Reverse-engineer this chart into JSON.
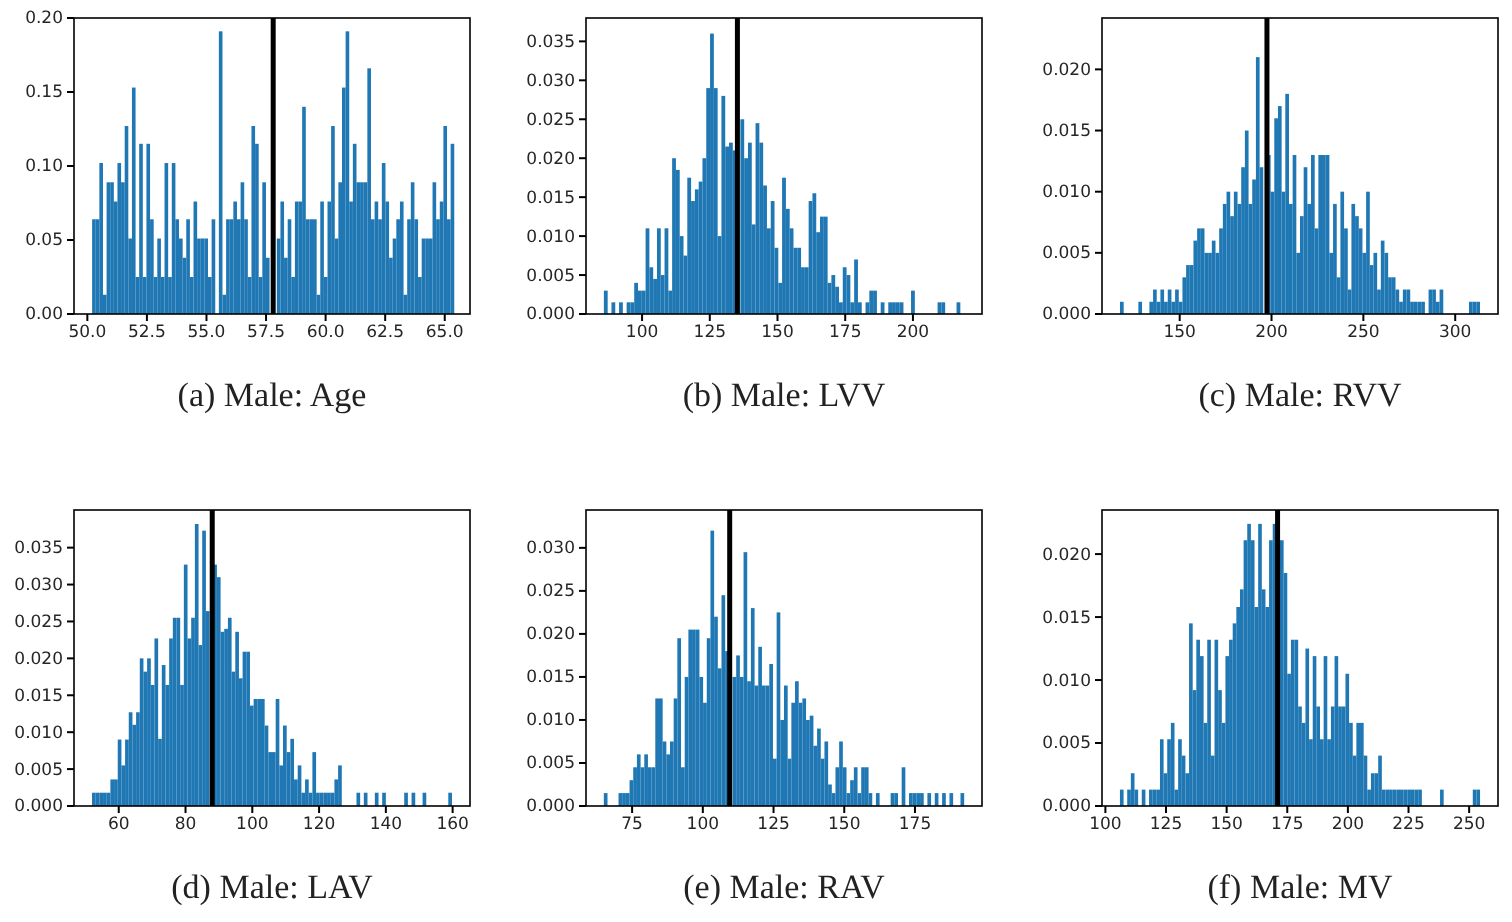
{
  "chart_data": [
    {
      "type": "histogram",
      "title": "(a) Male: Age",
      "color": "#1f77b4",
      "xlim": [
        49.44,
        66.06
      ],
      "ylim": [
        0,
        0.2
      ],
      "xticks": [
        {
          "value": 50,
          "label": "50.0"
        },
        {
          "value": 52.5,
          "label": "52.5"
        },
        {
          "value": 55,
          "label": "55.0"
        },
        {
          "value": 57.5,
          "label": "57.5"
        },
        {
          "value": 60,
          "label": "60.0"
        },
        {
          "value": 62.5,
          "label": "62.5"
        },
        {
          "value": 65,
          "label": "65.0"
        }
      ],
      "yticks": [
        {
          "value": 0,
          "label": "0.00"
        },
        {
          "value": 0.05,
          "label": "0.05"
        },
        {
          "value": 0.1,
          "label": "0.10"
        },
        {
          "value": 0.15,
          "label": "0.15"
        },
        {
          "value": 0.2,
          "label": "0.20"
        }
      ],
      "bins": [
        50.2,
        50.352,
        50.504,
        50.656,
        50.808,
        50.96,
        51.112,
        51.264,
        51.416,
        51.568,
        51.72,
        51.872,
        52.024,
        52.176,
        52.328,
        52.48,
        52.632,
        52.784,
        52.936,
        53.088,
        53.24,
        53.392,
        53.544,
        53.696,
        53.848,
        54,
        54.152,
        54.304,
        54.456,
        54.608,
        54.76,
        54.912,
        55.064,
        55.216,
        55.368,
        55.52,
        55.672,
        55.824,
        55.976,
        56.128,
        56.28,
        56.432,
        56.584,
        56.736,
        56.888,
        57.04,
        57.192,
        57.344,
        57.496,
        57.648,
        57.8,
        57.952,
        58.104,
        58.256,
        58.408,
        58.56,
        58.712,
        58.864,
        59.016,
        59.168,
        59.32,
        59.472,
        59.624,
        59.776,
        59.928,
        60.08,
        60.232,
        60.384,
        60.536,
        60.688,
        60.84,
        60.992,
        61.144,
        61.296,
        61.448,
        61.6,
        61.752,
        61.904,
        62.056,
        62.208,
        62.36,
        62.512,
        62.664,
        62.816,
        62.968,
        63.12,
        63.272,
        63.424,
        63.576,
        63.728,
        63.88,
        64.032,
        64.184,
        64.336,
        64.488,
        64.64,
        64.792,
        64.944,
        65.096,
        65.248,
        65.4
      ],
      "values": [
        0.064,
        0.064,
        0.102,
        0.013,
        0.089,
        0.089,
        0.076,
        0.102,
        0.089,
        0.127,
        0.051,
        0.153,
        0.025,
        0.115,
        0.025,
        0.115,
        0.064,
        0.025,
        0.051,
        0.025,
        0.102,
        0.025,
        0.102,
        0.064,
        0.051,
        0.038,
        0.064,
        0.025,
        0.076,
        0.051,
        0.051,
        0.051,
        0.025,
        0.064,
        0,
        0.191,
        0.013,
        0.064,
        0.064,
        0.076,
        0.064,
        0.089,
        0.064,
        0.025,
        0.127,
        0.115,
        0.025,
        0.089,
        0.038,
        null,
        null,
        0.051,
        0.076,
        0.038,
        0.064,
        0.025,
        0.076,
        0.076,
        0.14,
        0.064,
        0.064,
        0.064,
        0.013,
        0.076,
        0.025,
        0.076,
        0.127,
        0.051,
        0.089,
        0.153,
        0.191,
        0.076,
        0.115,
        0.089,
        0.089,
        0.089,
        0.166,
        0.064,
        0.076,
        0.064,
        0.102,
        0.076,
        0.038,
        0.051,
        0.064,
        0.076,
        0.013,
        0.064,
        0.089,
        0.064,
        0.025,
        0.051,
        0.051,
        0.051,
        0.089,
        0.064,
        0.076,
        0.127,
        0.064,
        0.115
      ],
      "ref_lines": [
        {
          "axis": "x",
          "value": 57.8,
          "color": "#000000"
        }
      ]
    },
    {
      "type": "histogram",
      "title": "(b) Male: LVV",
      "color": "#1f77b4",
      "xlim": [
        79.3,
        225.5
      ],
      "ylim": [
        0,
        0.038
      ],
      "xticks": [
        100,
        125,
        150,
        175,
        200
      ],
      "yticks": [
        {
          "value": 0,
          "label": "0.000"
        },
        {
          "value": 0.005,
          "label": "0.005"
        },
        {
          "value": 0.01,
          "label": "0.010"
        },
        {
          "value": 0.015,
          "label": "0.015"
        },
        {
          "value": 0.02,
          "label": "0.020"
        },
        {
          "value": 0.025,
          "label": "0.025"
        },
        {
          "value": 0.03,
          "label": "0.030"
        },
        {
          "value": 0.035,
          "label": "0.035"
        }
      ],
      "bins": [
        85.9,
        87.3,
        88.7,
        90.1,
        91.5,
        92.9,
        94.3,
        95.7,
        97.1,
        98.5,
        99.9,
        101.3,
        102.7,
        104.1,
        105.5,
        106.9,
        108.3,
        109.7,
        111.1,
        112.5,
        113.9,
        115.3,
        116.7,
        118.1,
        119.5,
        120.9,
        122.3,
        123.7,
        125.1,
        126.5,
        127.9,
        129.3,
        130.7,
        132.1,
        133.5,
        134.9,
        136.3,
        137.7,
        139.1,
        140.5,
        141.9,
        143.3,
        144.7,
        146.1,
        147.5,
        148.9,
        150.3,
        151.7,
        153.1,
        154.5,
        155.9,
        157.3,
        158.7,
        160.1,
        161.5,
        162.9,
        164.3,
        165.7,
        167.1,
        168.5,
        169.9,
        171.3,
        172.7,
        174.1,
        175.5,
        176.9,
        178.3,
        179.7,
        181.1,
        182.5,
        183.9,
        185.3,
        186.7,
        188.1,
        189.5,
        190.9,
        192.3,
        193.7,
        195.1,
        196.5,
        197.9,
        199.3,
        200.7,
        202.1,
        203.5,
        204.9,
        206.3,
        207.7,
        209.1,
        210.5,
        211.9,
        213.3,
        214.7,
        216.1,
        217.5,
        218.9
      ],
      "values": [
        0.003,
        0,
        0.0015,
        0,
        0.0015,
        0,
        0.0015,
        0.0015,
        0.004,
        0.003,
        0.003,
        0.011,
        0.006,
        0.0045,
        0.011,
        0.005,
        0.011,
        0.003,
        0.02,
        0.0185,
        0.01,
        0.0075,
        0.0175,
        0.0145,
        0.016,
        0.017,
        0.02,
        0.029,
        0.036,
        0.029,
        0.01,
        0.028,
        0.0215,
        0.022,
        0.021,
        null,
        0.025,
        0.02,
        0.022,
        0.0115,
        0.0245,
        0.022,
        0.0165,
        0.011,
        0.0145,
        0.0085,
        0.004,
        0.0175,
        0.0135,
        0.011,
        0.0085,
        0.0085,
        0.006,
        0.006,
        0.0145,
        0.0155,
        0.0105,
        0.0125,
        0.0125,
        0.004,
        0.005,
        0.0035,
        0.0015,
        0.006,
        0.005,
        0.0015,
        0.007,
        0.0015,
        0,
        0.0015,
        0.003,
        0.003,
        0,
        0.0015,
        0,
        0.0015,
        0.0015,
        0.0015,
        0.0015,
        0,
        0,
        0.003,
        0,
        0,
        0,
        0,
        0,
        0,
        0.0015,
        0.0015,
        0,
        0,
        0,
        0.0015,
        0
      ],
      "ref_lines": [
        {
          "axis": "x",
          "value": 135.2,
          "color": "#000000"
        }
      ]
    },
    {
      "type": "histogram",
      "title": "(c) Male: RVV",
      "color": "#1f77b4",
      "xlim": [
        107.7,
        323.3
      ],
      "ylim": [
        0,
        0.0242
      ],
      "xticks": [
        150,
        200,
        250,
        300
      ],
      "yticks": [
        {
          "value": 0,
          "label": "0.000"
        },
        {
          "value": 0.005,
          "label": "0.005"
        },
        {
          "value": 0.01,
          "label": "0.010"
        },
        {
          "value": 0.015,
          "label": "0.015"
        },
        {
          "value": 0.02,
          "label": "0.020"
        }
      ],
      "bins": [
        117.5,
        119.5,
        121.5,
        123.5,
        125.5,
        127.5,
        129.5,
        131.5,
        133.5,
        135.5,
        137.5,
        139.5,
        141.5,
        143.5,
        145.5,
        147.5,
        149.5,
        151.5,
        153.5,
        155.5,
        157.5,
        159.5,
        161.5,
        163.5,
        165.5,
        167.5,
        169.5,
        171.5,
        173.5,
        175.5,
        177.5,
        179.5,
        181.5,
        183.5,
        185.5,
        187.5,
        189.5,
        191.5,
        193.5,
        195.5,
        197.5,
        199.5,
        201.5,
        203.5,
        205.5,
        207.5,
        209.5,
        211.5,
        213.5,
        215.5,
        217.5,
        219.5,
        221.5,
        223.5,
        225.5,
        227.5,
        229.5,
        231.5,
        233.5,
        235.5,
        237.5,
        239.5,
        241.5,
        243.5,
        245.5,
        247.5,
        249.5,
        251.5,
        253.5,
        255.5,
        257.5,
        259.5,
        261.5,
        263.5,
        265.5,
        267.5,
        269.5,
        271.5,
        273.5,
        275.5,
        277.5,
        279.5,
        281.5,
        283.5,
        285.5,
        287.5,
        289.5,
        291.5,
        293.5,
        295.5,
        297.5,
        299.5,
        301.5,
        303.5,
        305.5,
        307.5,
        309.5,
        311.5,
        313.5
      ],
      "values": [
        0.001,
        0,
        0,
        0,
        0,
        0.001,
        0,
        0,
        0.001,
        0.002,
        0.001,
        0.002,
        0.001,
        0.002,
        0.001,
        0.002,
        0.001,
        0.003,
        0.004,
        0.004,
        0.006,
        0.007,
        0.007,
        0.005,
        0.005,
        0.006,
        0.005,
        0.007,
        0.009,
        0.01,
        0.008,
        0.01,
        0.009,
        0.012,
        0.015,
        0.009,
        0.011,
        0.021,
        0.012,
        null,
        0.013,
        0.01,
        0.016,
        0.017,
        0.01,
        0.018,
        0.009,
        0.013,
        0.005,
        0.008,
        0.012,
        0.009,
        0.013,
        0.007,
        0.013,
        0.013,
        0.013,
        0.005,
        0.009,
        0.003,
        0.01,
        0.007,
        0.002,
        0.009,
        0.008,
        0.007,
        0.005,
        0.01,
        0.004,
        0.005,
        0.002,
        0.006,
        0.005,
        0.003,
        0.003,
        0.002,
        0.001,
        0.002,
        0.002,
        0.001,
        0.001,
        0.001,
        0.001,
        0,
        0.002,
        0.002,
        0.001,
        0.002,
        0,
        0,
        0,
        0,
        0,
        0,
        0,
        0.001,
        0.001,
        0.001
      ],
      "ref_lines": [
        {
          "axis": "x",
          "value": 197.5,
          "color": "#000000"
        }
      ]
    },
    {
      "type": "histogram",
      "title": "(d) Male: LAV",
      "color": "#1f77b4",
      "xlim": [
        46.6,
        165.2
      ],
      "ylim": [
        0,
        0.0401
      ],
      "xticks": [
        60,
        80,
        100,
        120,
        140,
        160
      ],
      "yticks": [
        {
          "value": 0,
          "label": "0.000"
        },
        {
          "value": 0.005,
          "label": "0.005"
        },
        {
          "value": 0.01,
          "label": "0.010"
        },
        {
          "value": 0.015,
          "label": "0.015"
        },
        {
          "value": 0.02,
          "label": "0.020"
        },
        {
          "value": 0.025,
          "label": "0.025"
        },
        {
          "value": 0.03,
          "label": "0.030"
        },
        {
          "value": 0.035,
          "label": "0.035"
        }
      ],
      "bins": [
        52,
        53.1,
        54.2,
        55.3,
        56.4,
        57.5,
        58.6,
        59.7,
        60.8,
        61.9,
        63,
        64.1,
        65.2,
        66.3,
        67.4,
        68.5,
        69.6,
        70.7,
        71.8,
        72.9,
        74,
        75.1,
        76.2,
        77.3,
        78.4,
        79.5,
        80.6,
        81.7,
        82.8,
        83.9,
        85,
        86.1,
        87.2,
        88.3,
        89.4,
        90.5,
        91.6,
        92.7,
        93.8,
        94.9,
        96,
        97.1,
        98.2,
        99.3,
        100.4,
        101.5,
        102.6,
        103.7,
        104.8,
        105.9,
        107,
        108.1,
        109.2,
        110.3,
        111.4,
        112.5,
        113.6,
        114.7,
        115.8,
        116.9,
        118,
        119.1,
        120.2,
        121.3,
        122.4,
        123.5,
        124.6,
        125.7,
        126.8,
        127.9,
        129,
        130.1,
        131.2,
        132.3,
        133.4,
        134.5,
        135.6,
        136.7,
        137.8,
        138.9,
        140,
        141.1,
        142.2,
        143.3,
        144.4,
        145.5,
        146.6,
        147.7,
        148.8,
        149.9,
        151,
        152.1,
        153.2,
        154.3,
        155.4,
        156.5,
        157.6,
        158.7,
        159.8
      ],
      "values": [
        0.0018,
        0.0018,
        0.0018,
        0.0018,
        0.0018,
        0.0036,
        0.0036,
        0.009,
        0.0055,
        0.009,
        0.0127,
        0.011,
        0.0127,
        0.02,
        0.0182,
        0.02,
        0.0164,
        0.0227,
        0.0091,
        0.0191,
        0.0164,
        0.0227,
        0.0255,
        0.0255,
        0.0164,
        0.0327,
        0.0227,
        0.0255,
        0.0382,
        0.0218,
        0.0373,
        0.0264,
        null,
        0.0327,
        0.031,
        0.0236,
        0.024,
        0.0255,
        0.0182,
        0.0236,
        0.0173,
        0.0209,
        0.0209,
        0.0136,
        0.0145,
        0.0145,
        0.0145,
        0.0109,
        0.0073,
        0.0073,
        0.0145,
        0.0055,
        0.0109,
        0.0073,
        0.0091,
        0.0036,
        0.0055,
        0.0018,
        0.0036,
        0.0018,
        0.0073,
        0.0018,
        0.0018,
        0.0018,
        0.0018,
        0.0018,
        0.0036,
        0.0055,
        0,
        0,
        0,
        0,
        0.0018,
        0,
        0.0018,
        0,
        0,
        0.0018,
        0,
        0.0018,
        0,
        0,
        0,
        0,
        0,
        0.0018,
        0,
        0.0018,
        0,
        0,
        0.0018,
        0,
        0,
        0,
        0,
        0,
        0,
        0.0018
      ],
      "ref_lines": [
        {
          "axis": "x",
          "value": 88,
          "color": "#000000"
        }
      ]
    },
    {
      "type": "histogram",
      "title": "(e) Male: RAV",
      "color": "#1f77b4",
      "xlim": [
        58.7,
        198.7
      ],
      "ylim": [
        0,
        0.0344
      ],
      "xticks": [
        75,
        100,
        125,
        150,
        175
      ],
      "yticks": [
        {
          "value": 0,
          "label": "0.000"
        },
        {
          "value": 0.005,
          "label": "0.005"
        },
        {
          "value": 0.01,
          "label": "0.010"
        },
        {
          "value": 0.015,
          "label": "0.015"
        },
        {
          "value": 0.02,
          "label": "0.020"
        },
        {
          "value": 0.025,
          "label": "0.025"
        },
        {
          "value": 0.03,
          "label": "0.030"
        }
      ],
      "bins": [
        65,
        66.3,
        67.6,
        68.9,
        70.2,
        71.5,
        72.8,
        74.1,
        75.4,
        76.7,
        78,
        79.3,
        80.6,
        81.9,
        83.2,
        84.5,
        85.8,
        87.1,
        88.4,
        89.7,
        91,
        92.3,
        93.6,
        94.9,
        96.2,
        97.5,
        98.8,
        100.1,
        101.4,
        102.7,
        104,
        105.3,
        106.6,
        107.9,
        109.2,
        110.5,
        111.8,
        113.1,
        114.4,
        115.7,
        117,
        118.3,
        119.6,
        120.9,
        122.2,
        123.5,
        124.8,
        126.1,
        127.4,
        128.7,
        130,
        131.3,
        132.6,
        133.9,
        135.2,
        136.5,
        137.8,
        139.1,
        140.4,
        141.7,
        143,
        144.3,
        145.6,
        146.9,
        148.2,
        149.5,
        150.8,
        152.1,
        153.4,
        154.7,
        156,
        157.3,
        158.6,
        159.9,
        161.2,
        162.5,
        163.8,
        165.1,
        166.4,
        167.7,
        169,
        170.3,
        171.6,
        172.9,
        174.2,
        175.5,
        176.8,
        178.1,
        179.4,
        180.7,
        182,
        183.3,
        184.6,
        185.9,
        187.2,
        188.5,
        189.8,
        191.1,
        192.4
      ],
      "values": [
        0.0015,
        0,
        0,
        0,
        0.0015,
        0.0015,
        0.0015,
        0.003,
        0.0045,
        0.006,
        0.0045,
        0.006,
        0.0045,
        0.0045,
        0.0125,
        0.0125,
        0.0075,
        0.006,
        0.0075,
        0.0125,
        0.0195,
        0.0045,
        0.015,
        0.0205,
        0.0205,
        0.0205,
        0.015,
        0.012,
        0.0195,
        0.032,
        0.022,
        0.016,
        0.0245,
        0.018,
        null,
        0.015,
        0.0175,
        0.015,
        0.0295,
        0.0145,
        0.023,
        0.014,
        0.0185,
        0.014,
        0.014,
        0.0165,
        0.0055,
        0.0225,
        0.01,
        0.014,
        0.0055,
        0.012,
        0.0145,
        0.012,
        0.0125,
        0.01,
        0.0105,
        0.007,
        0.009,
        0.0055,
        0.0075,
        0.0025,
        0.0015,
        0.0045,
        0.0075,
        0.0045,
        0.0015,
        0.003,
        0.0045,
        0.0015,
        0.0045,
        0.0045,
        0.0015,
        0,
        0.0015,
        0,
        0,
        0,
        0.0015,
        0.0015,
        0,
        0.0045,
        0,
        0.0015,
        0.0015,
        0.0015,
        0.0015,
        0,
        0.0015,
        0,
        0.0015,
        0,
        0.0015,
        0,
        0.0015,
        0,
        0,
        0.0015
      ],
      "ref_lines": [
        {
          "axis": "x",
          "value": 109.5,
          "color": "#000000"
        }
      ]
    },
    {
      "type": "histogram",
      "title": "(f) Male: MV",
      "color": "#1f77b4",
      "xlim": [
        98.6,
        261.9
      ],
      "ylim": [
        0,
        0.0235
      ],
      "xticks": [
        100,
        125,
        150,
        175,
        200,
        225,
        250
      ],
      "yticks": [
        {
          "value": 0,
          "label": "0.000"
        },
        {
          "value": 0.005,
          "label": "0.005"
        },
        {
          "value": 0.01,
          "label": "0.010"
        },
        {
          "value": 0.015,
          "label": "0.015"
        },
        {
          "value": 0.02,
          "label": "0.020"
        }
      ],
      "bins": [
        106,
        107.5,
        109,
        110.5,
        112,
        113.5,
        115,
        116.5,
        118,
        119.5,
        121,
        122.5,
        124,
        125.5,
        127,
        128.5,
        130,
        131.5,
        133,
        134.5,
        136,
        137.5,
        139,
        140.5,
        142,
        143.5,
        145,
        146.5,
        148,
        149.5,
        151,
        152.5,
        154,
        155.5,
        157,
        158.5,
        160,
        161.5,
        163,
        164.5,
        166,
        167.5,
        169,
        170.5,
        172,
        173.5,
        175,
        176.5,
        178,
        179.5,
        181,
        182.5,
        184,
        185.5,
        187,
        188.5,
        190,
        191.5,
        193,
        194.5,
        196,
        197.5,
        199,
        200.5,
        202,
        203.5,
        205,
        206.5,
        208,
        209.5,
        211,
        212.5,
        214,
        215.5,
        217,
        218.5,
        220,
        221.5,
        223,
        224.5,
        226,
        227.5,
        229,
        230.5,
        232,
        233.5,
        235,
        236.5,
        238,
        239.5,
        241,
        242.5,
        244,
        245.5,
        247,
        248.5,
        250,
        251.5,
        253,
        254.5
      ],
      "values": [
        0.0013,
        0,
        0.0013,
        0.0026,
        0.0013,
        0,
        0.0013,
        0,
        0.0013,
        0.0013,
        0.0013,
        0.0053,
        0.0026,
        0.0053,
        0.0066,
        0.0013,
        0.0053,
        0.004,
        0.0026,
        0.0145,
        0.0092,
        0.0132,
        0.0119,
        0.0066,
        0.0132,
        0.004,
        0.0132,
        0.0092,
        0.0066,
        0.0119,
        0.0132,
        0.0145,
        0.0158,
        0.0172,
        0.0211,
        0.0224,
        0.0211,
        0.0158,
        0.0224,
        0.0172,
        0.0158,
        0.0211,
        0.0224,
        null,
        0.0211,
        0.0185,
        0.0105,
        0.0132,
        0.0132,
        0.0079,
        0.0066,
        0.0125,
        0.0053,
        0.0119,
        0.0079,
        0.0053,
        0.0119,
        0.0053,
        0.0079,
        0.0119,
        0.0079,
        0.0079,
        0.0105,
        0.0066,
        0.004,
        0.0066,
        0.0066,
        0.004,
        0.0013,
        0.0026,
        0.0026,
        0.004,
        0.0013,
        0.0013,
        0.0013,
        0.0013,
        0.0013,
        0.0013,
        0.0013,
        0.0013,
        0.0013,
        0.0013,
        0.0013,
        0,
        0,
        0,
        0,
        0,
        0.0013,
        0,
        0,
        0,
        0,
        0,
        0,
        0,
        0,
        0.0013,
        0.0013
      ],
      "ref_lines": [
        {
          "axis": "x",
          "value": 171,
          "color": "#000000"
        }
      ]
    }
  ]
}
